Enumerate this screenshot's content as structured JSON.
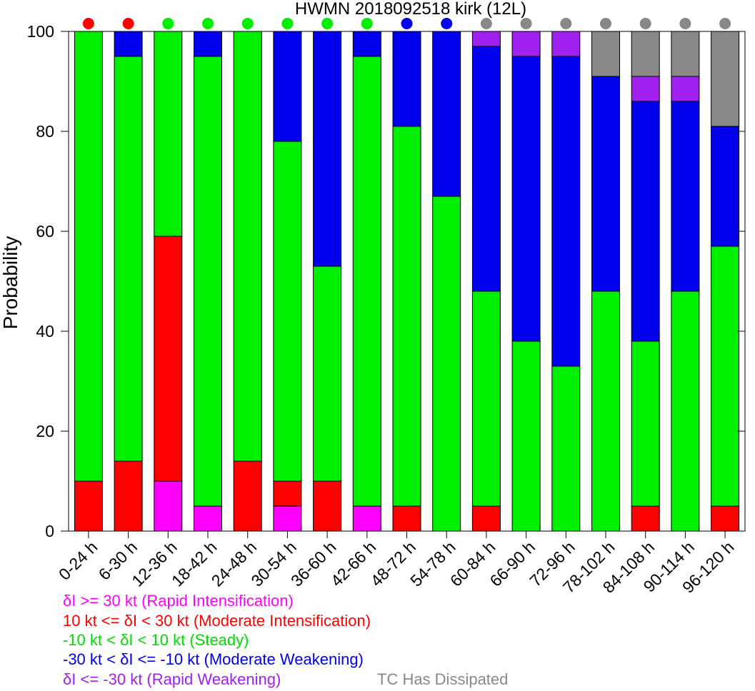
{
  "chart_data": {
    "type": "bar",
    "stacked": true,
    "title": "HWMN 2018092518 kirk (12L)",
    "xlabel": "",
    "ylabel": "Probability",
    "ylim": [
      0,
      100
    ],
    "yticks": [
      0,
      20,
      40,
      60,
      80,
      100
    ],
    "grid": false,
    "categories": [
      "0-24 h",
      "6-30 h",
      "12-36 h",
      "18-42 h",
      "24-48 h",
      "30-54 h",
      "36-60 h",
      "42-66 h",
      "48-72 h",
      "54-78 h",
      "60-84 h",
      "66-90 h",
      "72-96 h",
      "78-102 h",
      "84-108 h",
      "90-114 h",
      "96-120 h"
    ],
    "series": [
      {
        "key": "ri",
        "color": "#ff00ff",
        "values": [
          0,
          0,
          10,
          5,
          0,
          5,
          0,
          5,
          0,
          0,
          0,
          0,
          0,
          0,
          0,
          0,
          0
        ]
      },
      {
        "key": "mi",
        "color": "#ff0000",
        "values": [
          10,
          14,
          49,
          0,
          14,
          5,
          10,
          0,
          5,
          0,
          5,
          0,
          0,
          0,
          5,
          0,
          5
        ]
      },
      {
        "key": "st",
        "color": "#00ee00",
        "values": [
          90,
          81,
          41,
          90,
          86,
          68,
          43,
          90,
          76,
          67,
          43,
          38,
          33,
          48,
          33,
          48,
          52
        ]
      },
      {
        "key": "mw",
        "color": "#0000ee",
        "values": [
          0,
          5,
          0,
          5,
          0,
          22,
          47,
          5,
          19,
          33,
          49,
          57,
          62,
          43,
          48,
          38,
          24
        ]
      },
      {
        "key": "rw",
        "color": "#a020f0",
        "values": [
          0,
          0,
          0,
          0,
          0,
          0,
          0,
          0,
          0,
          0,
          3,
          5,
          5,
          0,
          5,
          5,
          0
        ]
      },
      {
        "key": "dis",
        "color": "#888888",
        "values": [
          0,
          0,
          0,
          0,
          0,
          0,
          0,
          0,
          0,
          0,
          0,
          0,
          0,
          9,
          9,
          9,
          19
        ]
      }
    ],
    "dots": [
      "#ff0000",
      "#ff0000",
      "#00ee00",
      "#00ee00",
      "#00ee00",
      "#00ee00",
      "#00ee00",
      "#00ee00",
      "#0000ee",
      "#0000ee",
      "#888888",
      "#888888",
      "#888888",
      "#888888",
      "#888888",
      "#888888",
      "#888888"
    ]
  },
  "legend": {
    "ri": {
      "text": "δI >= 30 kt (Rapid Intensification)",
      "color": "#ff00ff"
    },
    "mi": {
      "text": "10 kt <= δI < 30 kt (Moderate Intensification)",
      "color": "#ff0000"
    },
    "st": {
      "text": "-10 kt < δI < 10 kt (Steady)",
      "color": "#00ee00"
    },
    "mw": {
      "text": "-30 kt < δI <= -10 kt (Moderate Weakening)",
      "color": "#0000ee"
    },
    "rw": {
      "text": "δI <= -30 kt (Rapid Weakening)",
      "color": "#a020f0"
    },
    "dis": {
      "text": "TC Has Dissipated",
      "color": "#888888"
    }
  }
}
